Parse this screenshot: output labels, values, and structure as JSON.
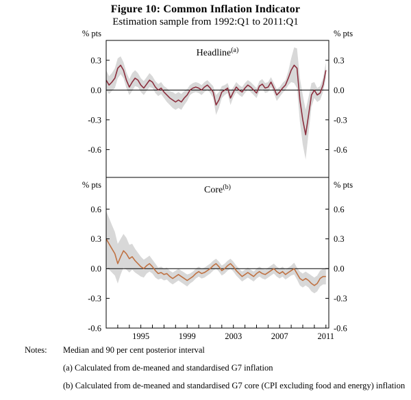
{
  "title": "Figure 10: Common Inflation Indicator",
  "subtitle": "Estimation sample from 1992:Q1 to 2011:Q1",
  "colors": {
    "headline_line": "#8b2e3d",
    "core_line": "#bf7142",
    "band_fill": "#d8d8d8",
    "axis": "#000000"
  },
  "notes": {
    "label": "Notes:",
    "lines": [
      "Median and 90 per cent posterior interval",
      "(a) Calculated from de-meaned and standardised G7 inflation",
      "(b) Calculated from de-meaned and standardised G7 core (CPI excluding food and energy) inflation"
    ]
  },
  "chart_data": [
    {
      "type": "line",
      "panel": "top",
      "title": "Headline",
      "title_superscript": "(a)",
      "unit": "% pts",
      "x_start": 1992.0,
      "x_step": 0.25,
      "xlim": [
        1992.0,
        2011.25
      ],
      "ylim": [
        -0.88,
        0.5
      ],
      "yticks": [
        0.3,
        0.0,
        -0.3,
        -0.6
      ],
      "xticks": [
        1993,
        1994,
        1995,
        1996,
        1997,
        1998,
        1999,
        2000,
        2001,
        2002,
        2003,
        2004,
        2005,
        2006,
        2007,
        2008,
        2009,
        2010,
        2011
      ],
      "xtick_labels": [
        {
          "year": 1995,
          "label": "1995"
        },
        {
          "year": 1999,
          "label": "1999"
        },
        {
          "year": 2003,
          "label": "2003"
        },
        {
          "year": 2007,
          "label": "2007"
        },
        {
          "year": 2011,
          "label": "2011"
        }
      ],
      "series": [
        {
          "name": "Median",
          "color": "#8b2e3d",
          "values": [
            0.1,
            0.05,
            0.08,
            0.12,
            0.22,
            0.25,
            0.2,
            0.1,
            0.03,
            0.08,
            0.12,
            0.1,
            0.05,
            0.02,
            0.06,
            0.1,
            0.08,
            0.03,
            0.0,
            0.02,
            -0.02,
            -0.05,
            -0.08,
            -0.1,
            -0.12,
            -0.1,
            -0.12,
            -0.08,
            -0.05,
            0.0,
            0.02,
            0.03,
            0.02,
            0.0,
            0.03,
            0.05,
            0.02,
            -0.02,
            -0.15,
            -0.1,
            -0.02,
            0.0,
            0.02,
            -0.08,
            -0.02,
            0.03,
            0.0,
            -0.02,
            0.02,
            0.05,
            0.03,
            0.0,
            -0.03,
            0.04,
            0.06,
            0.02,
            0.03,
            0.08,
            0.02,
            -0.05,
            -0.02,
            0.02,
            0.05,
            0.12,
            0.2,
            0.25,
            0.22,
            -0.1,
            -0.3,
            -0.45,
            -0.25,
            -0.05,
            0.0,
            -0.05,
            -0.03,
            0.05,
            0.2
          ]
        },
        {
          "name": "90 per cent posterior interval",
          "kind": "band",
          "color": "#d8d8d8",
          "halfwidth": [
            0.1,
            0.09,
            0.09,
            0.1,
            0.1,
            0.09,
            0.08,
            0.08,
            0.08,
            0.09,
            0.08,
            0.07,
            0.07,
            0.07,
            0.07,
            0.07,
            0.06,
            0.06,
            0.06,
            0.06,
            0.06,
            0.07,
            0.07,
            0.08,
            0.08,
            0.08,
            0.08,
            0.07,
            0.06,
            0.05,
            0.05,
            0.05,
            0.05,
            0.05,
            0.05,
            0.05,
            0.05,
            0.06,
            0.1,
            0.08,
            0.06,
            0.05,
            0.05,
            0.07,
            0.05,
            0.05,
            0.05,
            0.05,
            0.05,
            0.05,
            0.05,
            0.05,
            0.05,
            0.05,
            0.05,
            0.05,
            0.05,
            0.05,
            0.05,
            0.06,
            0.05,
            0.05,
            0.05,
            0.07,
            0.12,
            0.18,
            0.2,
            0.22,
            0.25,
            0.25,
            0.18,
            0.12,
            0.08,
            0.07,
            0.07,
            0.07,
            0.08
          ]
        }
      ]
    },
    {
      "type": "line",
      "panel": "bottom",
      "title": "Core",
      "title_superscript": "(b)",
      "unit": "% pts",
      "x_start": 1992.0,
      "x_step": 0.25,
      "xlim": [
        1992.0,
        2011.25
      ],
      "ylim": [
        -0.6,
        0.92
      ],
      "yticks": [
        0.6,
        0.3,
        0.0,
        -0.3,
        -0.6
      ],
      "xticks": [
        1993,
        1994,
        1995,
        1996,
        1997,
        1998,
        1999,
        2000,
        2001,
        2002,
        2003,
        2004,
        2005,
        2006,
        2007,
        2008,
        2009,
        2010,
        2011
      ],
      "xtick_labels": [
        {
          "year": 1995,
          "label": "1995"
        },
        {
          "year": 1999,
          "label": "1999"
        },
        {
          "year": 2003,
          "label": "2003"
        },
        {
          "year": 2007,
          "label": "2007"
        },
        {
          "year": 2011,
          "label": "2011"
        }
      ],
      "series": [
        {
          "name": "Median",
          "color": "#bf7142",
          "values": [
            0.3,
            0.25,
            0.2,
            0.15,
            0.05,
            0.12,
            0.18,
            0.15,
            0.1,
            0.12,
            0.08,
            0.05,
            0.02,
            0.0,
            0.03,
            0.05,
            0.02,
            -0.02,
            -0.05,
            -0.04,
            -0.06,
            -0.05,
            -0.08,
            -0.1,
            -0.08,
            -0.06,
            -0.08,
            -0.1,
            -0.12,
            -0.1,
            -0.08,
            -0.05,
            -0.03,
            -0.05,
            -0.04,
            -0.02,
            0.0,
            0.03,
            0.05,
            0.02,
            -0.02,
            0.0,
            0.03,
            0.05,
            0.02,
            -0.02,
            -0.05,
            -0.08,
            -0.06,
            -0.04,
            -0.06,
            -0.08,
            -0.05,
            -0.03,
            -0.05,
            -0.06,
            -0.04,
            -0.02,
            0.0,
            -0.03,
            -0.05,
            -0.03,
            -0.06,
            -0.04,
            -0.02,
            0.0,
            -0.05,
            -0.1,
            -0.12,
            -0.1,
            -0.12,
            -0.15,
            -0.17,
            -0.15,
            -0.1,
            -0.08,
            -0.08
          ]
        },
        {
          "name": "90 per cent posterior interval",
          "kind": "band",
          "color": "#d8d8d8",
          "halfwidth": [
            0.28,
            0.26,
            0.24,
            0.22,
            0.2,
            0.18,
            0.17,
            0.16,
            0.14,
            0.13,
            0.12,
            0.11,
            0.1,
            0.09,
            0.08,
            0.08,
            0.07,
            0.07,
            0.06,
            0.06,
            0.06,
            0.06,
            0.06,
            0.06,
            0.06,
            0.06,
            0.06,
            0.06,
            0.06,
            0.05,
            0.05,
            0.05,
            0.05,
            0.05,
            0.05,
            0.05,
            0.05,
            0.05,
            0.05,
            0.05,
            0.05,
            0.05,
            0.05,
            0.05,
            0.05,
            0.05,
            0.05,
            0.05,
            0.05,
            0.05,
            0.05,
            0.05,
            0.05,
            0.05,
            0.05,
            0.05,
            0.05,
            0.05,
            0.05,
            0.05,
            0.05,
            0.05,
            0.05,
            0.05,
            0.05,
            0.06,
            0.06,
            0.07,
            0.07,
            0.07,
            0.07,
            0.08,
            0.08,
            0.08,
            0.08,
            0.08,
            0.08
          ]
        }
      ]
    }
  ]
}
